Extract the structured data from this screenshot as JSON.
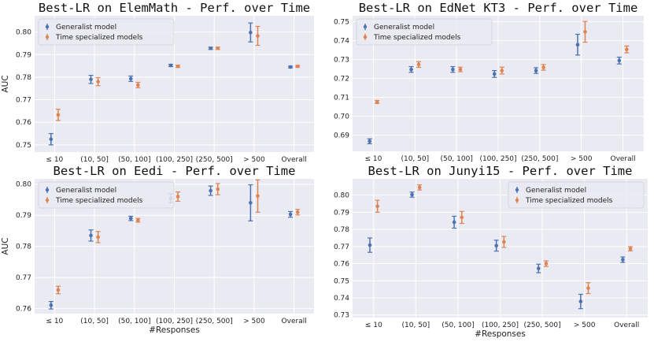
{
  "colors": {
    "generalist": "#4c72b0",
    "time_specialized": "#dd8452",
    "panel_bg": "#eaeaf2",
    "grid": "#ffffff",
    "legend_bg": "#eaeaf2"
  },
  "chart_data": [
    {
      "type": "scatter",
      "title": "Best-LR on ElemMath - Perf. over Time",
      "ylabel": "AUC",
      "xlabel": "",
      "categories": [
        "≤ 10",
        "(10, 50]",
        "(50, 100]",
        "(100, 250]",
        "(250, 500]",
        "> 500",
        "Overall"
      ],
      "ylim": [
        0.7468,
        0.8072
      ],
      "yticks": [
        0.75,
        0.76,
        0.77,
        0.78,
        0.79,
        0.8
      ],
      "ytick_labels": [
        "0.75",
        "0.76",
        "0.77",
        "0.78",
        "0.79",
        "0.80"
      ],
      "legend_position": "top-left",
      "series": [
        {
          "name": "Generalist model",
          "values": [
            0.7525,
            0.779,
            0.7793,
            0.7852,
            0.7928,
            0.7998,
            0.7845
          ],
          "errors": [
            0.0025,
            0.0018,
            0.0012,
            0.0005,
            0.0005,
            0.0042,
            0.0004
          ]
        },
        {
          "name": "Time specialized models",
          "values": [
            0.7633,
            0.778,
            0.7765,
            0.7848,
            0.7928,
            0.7983,
            0.7848
          ],
          "errors": [
            0.0025,
            0.0018,
            0.0012,
            0.0005,
            0.0005,
            0.0042,
            0.0004
          ]
        }
      ]
    },
    {
      "type": "scatter",
      "title": "Best-LR on EdNet KT3 - Perf. over Time",
      "ylabel": "",
      "xlabel": "",
      "categories": [
        "≤ 10",
        "(10, 50]",
        "(50, 100]",
        "(100, 250]",
        "(250, 500]",
        "> 500",
        "Overall"
      ],
      "ylim": [
        0.6815,
        0.7532
      ],
      "yticks": [
        0.69,
        0.7,
        0.71,
        0.72,
        0.73,
        0.74,
        0.75
      ],
      "ytick_labels": [
        "0.69",
        "0.70",
        "0.71",
        "0.72",
        "0.73",
        "0.74",
        "0.75"
      ],
      "legend_position": "top-left",
      "series": [
        {
          "name": "Generalist model",
          "values": [
            0.6868,
            0.7248,
            0.7248,
            0.7224,
            0.7242,
            0.7379,
            0.7295
          ],
          "errors": [
            0.0013,
            0.0015,
            0.0015,
            0.0018,
            0.0015,
            0.0055,
            0.0018
          ]
        },
        {
          "name": "Time specialized models",
          "values": [
            0.7076,
            0.7274,
            0.7248,
            0.7242,
            0.7259,
            0.7447,
            0.7354
          ],
          "errors": [
            0.0008,
            0.0015,
            0.0012,
            0.0018,
            0.0015,
            0.0055,
            0.0018
          ]
        }
      ]
    },
    {
      "type": "scatter",
      "title": "Best-LR on Eedi - Perf. over Time",
      "ylabel": "AUC",
      "xlabel": "#Responses",
      "categories": [
        "≤ 10",
        "(10, 50]",
        "(50, 100]",
        "(100, 250]",
        "(250, 500]",
        "> 500",
        "Overall"
      ],
      "ylim": [
        0.7584,
        0.8017
      ],
      "yticks": [
        0.76,
        0.77,
        0.78,
        0.79,
        0.8
      ],
      "ytick_labels": [
        "0.76",
        "0.77",
        "0.78",
        "0.79",
        "0.80"
      ],
      "legend_position": "top-left",
      "series": [
        {
          "name": "Generalist model",
          "values": [
            0.7611,
            0.7835,
            0.789,
            0.7955,
            0.7979,
            0.794,
            0.7903
          ],
          "errors": [
            0.0012,
            0.0018,
            0.0007,
            0.0015,
            0.0015,
            0.0058,
            0.0009
          ]
        },
        {
          "name": "Time specialized models",
          "values": [
            0.766,
            0.783,
            0.7884,
            0.796,
            0.7984,
            0.7962,
            0.791
          ],
          "errors": [
            0.0012,
            0.0018,
            0.0006,
            0.0015,
            0.0018,
            0.0052,
            0.0009
          ]
        }
      ]
    },
    {
      "type": "scatter",
      "title": "Best-LR on Junyi15 - Perf. over Time",
      "ylabel": "",
      "xlabel": "#Responses",
      "categories": [
        "≤ 10",
        "(10, 50]",
        "(50, 100]",
        "(100, 250]",
        "(250, 500]",
        "> 500",
        "Overall"
      ],
      "ylim": [
        0.7285,
        0.8095
      ],
      "yticks": [
        0.73,
        0.74,
        0.75,
        0.76,
        0.77,
        0.78,
        0.79,
        0.8
      ],
      "ytick_labels": [
        "0.73",
        "0.74",
        "0.75",
        "0.76",
        "0.77",
        "0.78",
        "0.79",
        "0.80"
      ],
      "legend_position": "top-right",
      "series": [
        {
          "name": "Generalist model",
          "values": [
            0.7708,
            0.8003,
            0.7842,
            0.7705,
            0.7572,
            0.7379,
            0.7623
          ],
          "errors": [
            0.0042,
            0.0015,
            0.0035,
            0.0032,
            0.0025,
            0.0042,
            0.0016
          ]
        },
        {
          "name": "Time specialized models",
          "values": [
            0.7935,
            0.8045,
            0.787,
            0.7727,
            0.76,
            0.7457,
            0.7687
          ],
          "errors": [
            0.0035,
            0.0015,
            0.0035,
            0.0032,
            0.0016,
            0.0032,
            0.0012
          ]
        }
      ]
    }
  ]
}
